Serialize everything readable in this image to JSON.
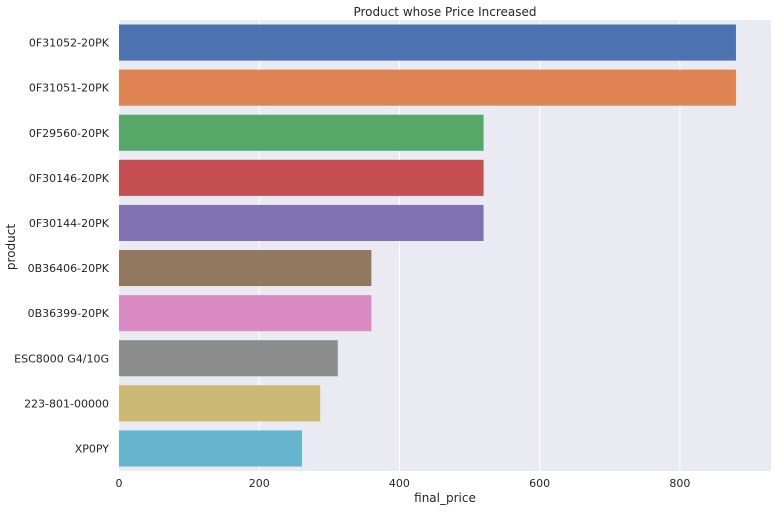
{
  "chart_data": {
    "type": "bar",
    "orientation": "horizontal",
    "title": "Product whose Price Increased",
    "xlabel": "final_price",
    "ylabel": "product",
    "xlim": [
      0,
      930
    ],
    "xticks": [
      0,
      200,
      400,
      600,
      800
    ],
    "grid": true,
    "categories": [
      "0F31052-20PK",
      "0F31051-20PK",
      "0F29560-20PK",
      "0F30146-20PK",
      "0F30144-20PK",
      "0B36406-20PK",
      "0B36399-20PK",
      "ESC8000 G4/10G",
      "223-801-00000",
      "XP0PY"
    ],
    "values": [
      880,
      880,
      520,
      520,
      520,
      360,
      360,
      312,
      287,
      261
    ],
    "colors": [
      "#4c72b0",
      "#dd8452",
      "#55a868",
      "#c44e52",
      "#8172b3",
      "#937860",
      "#da8bc3",
      "#8c8c8c",
      "#ccb974",
      "#64b5cd"
    ],
    "background": "#eaeaf2"
  }
}
